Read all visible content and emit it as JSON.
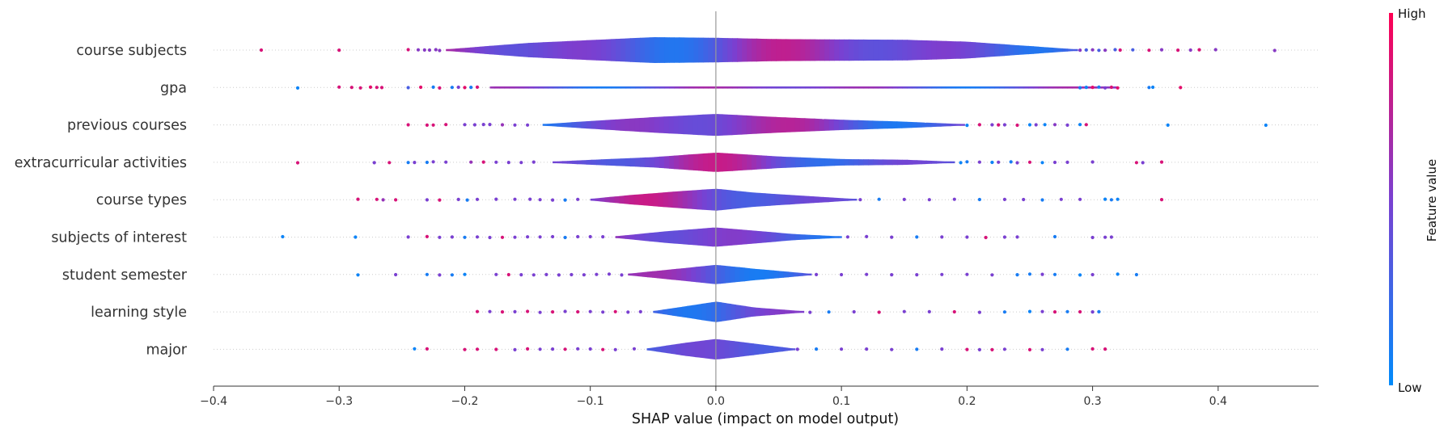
{
  "chart_data": {
    "type": "scatter",
    "subtype": "shap-layered-violin",
    "title": "",
    "xlabel": "SHAP value (impact on model output)",
    "xlim": [
      -0.4,
      0.48
    ],
    "xticks": [
      -0.4,
      -0.3,
      -0.2,
      -0.1,
      0.0,
      0.1,
      0.2,
      0.3,
      0.4
    ],
    "xtick_labels": [
      "−0.4",
      "−0.3",
      "−0.2",
      "−0.1",
      "0.0",
      "0.1",
      "0.2",
      "0.3",
      "0.4"
    ],
    "grid": false,
    "features": [
      {
        "name": "course subjects",
        "violin": {
          "x": [
            -0.215,
            -0.15,
            -0.05,
            0.0,
            0.05,
            0.15,
            0.2,
            0.288
          ],
          "w": [
            0.06,
            0.55,
            1.0,
            0.95,
            0.85,
            0.8,
            0.65,
            0.05
          ]
        },
        "points": [
          [
            -0.362,
            0.85
          ],
          [
            -0.3,
            0.85
          ],
          [
            -0.245,
            0.85
          ],
          [
            -0.237,
            0.55
          ],
          [
            -0.232,
            0.55
          ],
          [
            -0.228,
            0.55
          ],
          [
            -0.223,
            0.55
          ],
          [
            -0.22,
            0.55
          ],
          [
            0.29,
            0.55
          ],
          [
            0.295,
            0.3
          ],
          [
            0.3,
            0.55
          ],
          [
            0.305,
            0.3
          ],
          [
            0.31,
            0.55
          ],
          [
            0.318,
            0.3
          ],
          [
            0.322,
            0.85
          ],
          [
            0.332,
            0.3
          ],
          [
            0.345,
            0.85
          ],
          [
            0.355,
            0.55
          ],
          [
            0.368,
            0.85
          ],
          [
            0.378,
            0.55
          ],
          [
            0.385,
            0.85
          ],
          [
            0.398,
            0.55
          ],
          [
            0.445,
            0.55
          ]
        ]
      },
      {
        "name": "gpa",
        "violin": {
          "x": [
            -0.18,
            0.32
          ],
          "w": [
            0.08,
            0.08
          ]
        },
        "points": [
          [
            -0.333,
            0.05
          ],
          [
            -0.3,
            0.85
          ],
          [
            -0.29,
            0.85
          ],
          [
            -0.283,
            0.85
          ],
          [
            -0.275,
            0.9
          ],
          [
            -0.27,
            0.85
          ],
          [
            -0.266,
            0.85
          ],
          [
            -0.245,
            0.3
          ],
          [
            -0.235,
            0.9
          ],
          [
            -0.225,
            0.1
          ],
          [
            -0.22,
            0.85
          ],
          [
            -0.21,
            0.1
          ],
          [
            -0.205,
            0.5
          ],
          [
            -0.2,
            0.9
          ],
          [
            -0.195,
            0.1
          ],
          [
            -0.19,
            0.85
          ],
          [
            0.29,
            0.1
          ],
          [
            0.295,
            0.05
          ],
          [
            0.3,
            0.9
          ],
          [
            0.305,
            0.1
          ],
          [
            0.31,
            0.5
          ],
          [
            0.315,
            0.85
          ],
          [
            0.32,
            0.9
          ],
          [
            0.345,
            0.1
          ],
          [
            0.348,
            0.05
          ],
          [
            0.37,
            0.9
          ]
        ]
      },
      {
        "name": "previous courses",
        "violin": {
          "x": [
            -0.138,
            -0.1,
            -0.05,
            0.0,
            0.05,
            0.1,
            0.15,
            0.198
          ],
          "w": [
            0.06,
            0.3,
            0.6,
            0.85,
            0.6,
            0.4,
            0.25,
            0.05
          ]
        },
        "points": [
          [
            -0.245,
            0.85
          ],
          [
            -0.23,
            0.85
          ],
          [
            -0.225,
            0.85
          ],
          [
            -0.215,
            0.85
          ],
          [
            -0.2,
            0.5
          ],
          [
            -0.192,
            0.5
          ],
          [
            -0.185,
            0.5
          ],
          [
            -0.18,
            0.5
          ],
          [
            -0.17,
            0.6
          ],
          [
            -0.16,
            0.5
          ],
          [
            -0.15,
            0.5
          ],
          [
            0.2,
            0.05
          ],
          [
            0.21,
            0.85
          ],
          [
            0.22,
            0.5
          ],
          [
            0.225,
            0.85
          ],
          [
            0.23,
            0.5
          ],
          [
            0.24,
            0.85
          ],
          [
            0.25,
            0.05
          ],
          [
            0.255,
            0.5
          ],
          [
            0.262,
            0.05
          ],
          [
            0.27,
            0.55
          ],
          [
            0.28,
            0.5
          ],
          [
            0.29,
            0.05
          ],
          [
            0.295,
            0.85
          ],
          [
            0.36,
            0.05
          ],
          [
            0.438,
            0.05
          ]
        ]
      },
      {
        "name": "extracurricular activities",
        "violin": {
          "x": [
            -0.13,
            -0.05,
            0.0,
            0.05,
            0.1,
            0.15,
            0.19
          ],
          "w": [
            0.06,
            0.4,
            0.75,
            0.45,
            0.25,
            0.2,
            0.05
          ]
        },
        "points": [
          [
            -0.333,
            0.85
          ],
          [
            -0.272,
            0.5
          ],
          [
            -0.26,
            0.85
          ],
          [
            -0.245,
            0.1
          ],
          [
            -0.24,
            0.5
          ],
          [
            -0.23,
            0.1
          ],
          [
            -0.225,
            0.5
          ],
          [
            -0.215,
            0.5
          ],
          [
            -0.195,
            0.6
          ],
          [
            -0.185,
            0.85
          ],
          [
            -0.175,
            0.5
          ],
          [
            -0.165,
            0.5
          ],
          [
            -0.155,
            0.5
          ],
          [
            -0.145,
            0.5
          ],
          [
            0.195,
            0.05
          ],
          [
            0.2,
            0.1
          ],
          [
            0.21,
            0.5
          ],
          [
            0.22,
            0.05
          ],
          [
            0.225,
            0.5
          ],
          [
            0.235,
            0.1
          ],
          [
            0.24,
            0.5
          ],
          [
            0.25,
            0.85
          ],
          [
            0.26,
            0.05
          ],
          [
            0.27,
            0.5
          ],
          [
            0.28,
            0.5
          ],
          [
            0.3,
            0.5
          ],
          [
            0.335,
            0.85
          ],
          [
            0.34,
            0.5
          ],
          [
            0.355,
            0.85
          ]
        ]
      },
      {
        "name": "course types",
        "violin": {
          "x": [
            -0.1,
            -0.07,
            -0.03,
            0.0,
            0.03,
            0.07,
            0.112
          ],
          "w": [
            0.06,
            0.35,
            0.65,
            0.85,
            0.55,
            0.3,
            0.05
          ]
        },
        "points": [
          [
            -0.285,
            0.85
          ],
          [
            -0.27,
            0.85
          ],
          [
            -0.265,
            0.6
          ],
          [
            -0.255,
            0.85
          ],
          [
            -0.23,
            0.5
          ],
          [
            -0.22,
            0.85
          ],
          [
            -0.205,
            0.5
          ],
          [
            -0.198,
            0.1
          ],
          [
            -0.19,
            0.5
          ],
          [
            -0.175,
            0.5
          ],
          [
            -0.16,
            0.5
          ],
          [
            -0.148,
            0.5
          ],
          [
            -0.14,
            0.5
          ],
          [
            -0.13,
            0.5
          ],
          [
            -0.12,
            0.1
          ],
          [
            -0.11,
            0.5
          ],
          [
            0.115,
            0.5
          ],
          [
            0.13,
            0.1
          ],
          [
            0.15,
            0.5
          ],
          [
            0.17,
            0.5
          ],
          [
            0.19,
            0.5
          ],
          [
            0.21,
            0.1
          ],
          [
            0.23,
            0.5
          ],
          [
            0.245,
            0.5
          ],
          [
            0.26,
            0.1
          ],
          [
            0.275,
            0.5
          ],
          [
            0.29,
            0.5
          ],
          [
            0.31,
            0.05
          ],
          [
            0.315,
            0.1
          ],
          [
            0.32,
            0.05
          ],
          [
            0.355,
            0.85
          ]
        ]
      },
      {
        "name": "subjects of interest",
        "violin": {
          "x": [
            -0.08,
            -0.04,
            0.0,
            0.03,
            0.06,
            0.1
          ],
          "w": [
            0.06,
            0.45,
            0.75,
            0.5,
            0.25,
            0.05
          ]
        },
        "points": [
          [
            -0.345,
            0.05
          ],
          [
            -0.287,
            0.05
          ],
          [
            -0.245,
            0.5
          ],
          [
            -0.23,
            0.85
          ],
          [
            -0.22,
            0.5
          ],
          [
            -0.21,
            0.5
          ],
          [
            -0.2,
            0.1
          ],
          [
            -0.19,
            0.5
          ],
          [
            -0.18,
            0.5
          ],
          [
            -0.17,
            0.85
          ],
          [
            -0.16,
            0.5
          ],
          [
            -0.15,
            0.5
          ],
          [
            -0.14,
            0.5
          ],
          [
            -0.13,
            0.5
          ],
          [
            -0.12,
            0.1
          ],
          [
            -0.11,
            0.5
          ],
          [
            -0.1,
            0.5
          ],
          [
            -0.09,
            0.5
          ],
          [
            0.105,
            0.5
          ],
          [
            0.12,
            0.5
          ],
          [
            0.14,
            0.5
          ],
          [
            0.16,
            0.1
          ],
          [
            0.18,
            0.5
          ],
          [
            0.2,
            0.5
          ],
          [
            0.215,
            0.85
          ],
          [
            0.23,
            0.5
          ],
          [
            0.24,
            0.5
          ],
          [
            0.27,
            0.1
          ],
          [
            0.3,
            0.5
          ],
          [
            0.31,
            0.5
          ],
          [
            0.315,
            0.5
          ]
        ]
      },
      {
        "name": "student semester",
        "violin": {
          "x": [
            -0.07,
            -0.03,
            0.0,
            0.03,
            0.076
          ],
          "w": [
            0.06,
            0.45,
            0.75,
            0.45,
            0.05
          ]
        },
        "points": [
          [
            -0.285,
            0.05
          ],
          [
            -0.255,
            0.5
          ],
          [
            -0.23,
            0.1
          ],
          [
            -0.22,
            0.5
          ],
          [
            -0.21,
            0.1
          ],
          [
            -0.2,
            0.05
          ],
          [
            -0.175,
            0.5
          ],
          [
            -0.165,
            0.85
          ],
          [
            -0.155,
            0.5
          ],
          [
            -0.145,
            0.5
          ],
          [
            -0.135,
            0.5
          ],
          [
            -0.125,
            0.5
          ],
          [
            -0.115,
            0.5
          ],
          [
            -0.105,
            0.5
          ],
          [
            -0.095,
            0.5
          ],
          [
            -0.085,
            0.5
          ],
          [
            -0.075,
            0.5
          ],
          [
            0.08,
            0.5
          ],
          [
            0.1,
            0.5
          ],
          [
            0.12,
            0.5
          ],
          [
            0.14,
            0.5
          ],
          [
            0.16,
            0.5
          ],
          [
            0.18,
            0.5
          ],
          [
            0.2,
            0.5
          ],
          [
            0.22,
            0.5
          ],
          [
            0.24,
            0.1
          ],
          [
            0.25,
            0.1
          ],
          [
            0.26,
            0.5
          ],
          [
            0.27,
            0.1
          ],
          [
            0.29,
            0.05
          ],
          [
            0.3,
            0.5
          ],
          [
            0.32,
            0.05
          ],
          [
            0.335,
            0.1
          ]
        ]
      },
      {
        "name": "learning style",
        "violin": {
          "x": [
            -0.05,
            -0.02,
            0.0,
            0.03,
            0.07
          ],
          "w": [
            0.06,
            0.5,
            0.8,
            0.35,
            0.05
          ]
        },
        "points": [
          [
            -0.19,
            0.85
          ],
          [
            -0.18,
            0.5
          ],
          [
            -0.17,
            0.85
          ],
          [
            -0.16,
            0.5
          ],
          [
            -0.15,
            0.85
          ],
          [
            -0.14,
            0.5
          ],
          [
            -0.13,
            0.85
          ],
          [
            -0.12,
            0.5
          ],
          [
            -0.11,
            0.85
          ],
          [
            -0.1,
            0.5
          ],
          [
            -0.09,
            0.5
          ],
          [
            -0.08,
            0.85
          ],
          [
            -0.07,
            0.5
          ],
          [
            -0.06,
            0.5
          ],
          [
            0.075,
            0.5
          ],
          [
            0.09,
            0.1
          ],
          [
            0.11,
            0.5
          ],
          [
            0.13,
            0.85
          ],
          [
            0.15,
            0.5
          ],
          [
            0.17,
            0.5
          ],
          [
            0.19,
            0.85
          ],
          [
            0.21,
            0.5
          ],
          [
            0.23,
            0.1
          ],
          [
            0.25,
            0.05
          ],
          [
            0.26,
            0.5
          ],
          [
            0.27,
            0.85
          ],
          [
            0.28,
            0.1
          ],
          [
            0.29,
            0.85
          ],
          [
            0.3,
            0.5
          ],
          [
            0.305,
            0.1
          ]
        ]
      },
      {
        "name": "major",
        "violin": {
          "x": [
            -0.055,
            -0.025,
            0.0,
            0.03,
            0.063
          ],
          "w": [
            0.06,
            0.5,
            0.8,
            0.45,
            0.05
          ]
        },
        "points": [
          [
            -0.24,
            0.05
          ],
          [
            -0.23,
            0.85
          ],
          [
            -0.2,
            0.85
          ],
          [
            -0.19,
            0.85
          ],
          [
            -0.175,
            0.85
          ],
          [
            -0.16,
            0.5
          ],
          [
            -0.15,
            0.85
          ],
          [
            -0.14,
            0.5
          ],
          [
            -0.13,
            0.5
          ],
          [
            -0.12,
            0.85
          ],
          [
            -0.11,
            0.5
          ],
          [
            -0.1,
            0.5
          ],
          [
            -0.09,
            0.85
          ],
          [
            -0.08,
            0.5
          ],
          [
            -0.065,
            0.5
          ],
          [
            0.065,
            0.5
          ],
          [
            0.08,
            0.1
          ],
          [
            0.1,
            0.5
          ],
          [
            0.12,
            0.5
          ],
          [
            0.14,
            0.5
          ],
          [
            0.16,
            0.1
          ],
          [
            0.18,
            0.5
          ],
          [
            0.2,
            0.85
          ],
          [
            0.21,
            0.5
          ],
          [
            0.22,
            0.85
          ],
          [
            0.23,
            0.5
          ],
          [
            0.25,
            0.85
          ],
          [
            0.26,
            0.5
          ],
          [
            0.28,
            0.1
          ],
          [
            0.3,
            0.85
          ],
          [
            0.31,
            0.85
          ]
        ]
      }
    ],
    "colorbar": {
      "label": "Feature value",
      "high_label": "High",
      "low_label": "Low",
      "low_color": "#008bfb",
      "mid_color": "#7a40d1",
      "high_color": "#ff0052"
    },
    "zero_line_color": "#999999"
  }
}
